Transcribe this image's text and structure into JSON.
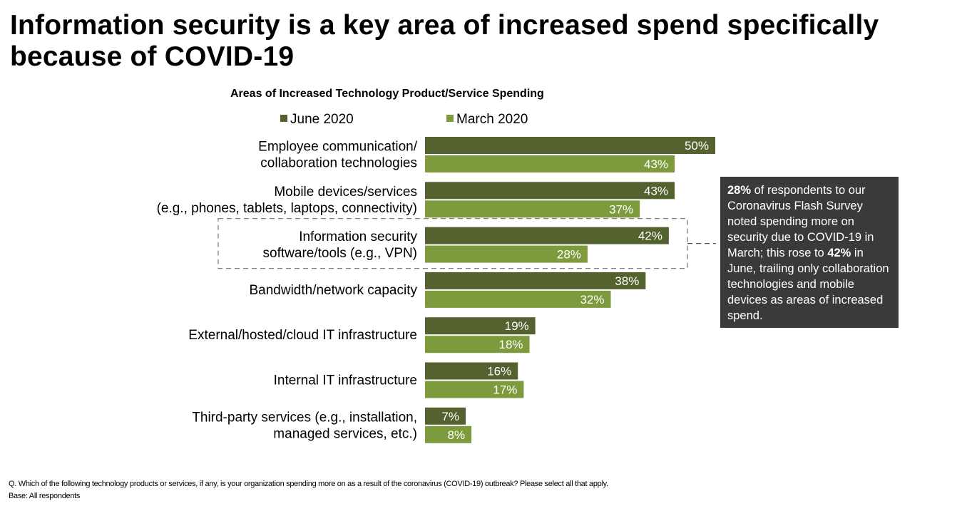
{
  "title": "Information security is a key area of increased spend specifically because of COVID-19",
  "colors": {
    "june": "#53622f",
    "march": "#7d9a3c",
    "callout_bg": "#3a3a3a",
    "highlight_border": "#7f7f7f"
  },
  "callout": {
    "pct_march": "28%",
    "text_1": " of respondents to our Coronavirus Flash Survey noted spending more on security due to COVID-19 in March; this rose to ",
    "pct_june": "42%",
    "text_2": " in June, trailing only collaboration technologies and mobile devices as areas of increased spend."
  },
  "footnote": {
    "question": "Q. Which of the following technology products or services, if any, is your organization spending more on as a result of the coronavirus (COVID-19) outbreak? Please select all that apply.",
    "base": "Base: All respondents"
  },
  "chart_data": {
    "type": "bar",
    "orientation": "horizontal",
    "title": "Areas of Increased Technology Product/Service Spending",
    "legend_position": "top",
    "xlim": [
      0,
      50
    ],
    "value_suffix": "%",
    "categories": [
      [
        "Employee communication/",
        "collaboration technologies"
      ],
      [
        "Mobile devices/services",
        "(e.g., phones, tablets, laptops, connectivity)"
      ],
      [
        "Information security",
        "software/tools (e.g., VPN)"
      ],
      [
        "Bandwidth/network capacity"
      ],
      [
        "External/hosted/cloud IT infrastructure"
      ],
      [
        "Internal IT infrastructure"
      ],
      [
        "Third-party services (e.g., installation,",
        "managed services, etc.)"
      ]
    ],
    "highlighted_category_index": 2,
    "series": [
      {
        "name": "June 2020",
        "values": [
          50,
          43,
          42,
          38,
          19,
          16,
          7
        ]
      },
      {
        "name": "March 2020",
        "values": [
          43,
          37,
          28,
          32,
          18,
          17,
          8
        ]
      }
    ]
  }
}
